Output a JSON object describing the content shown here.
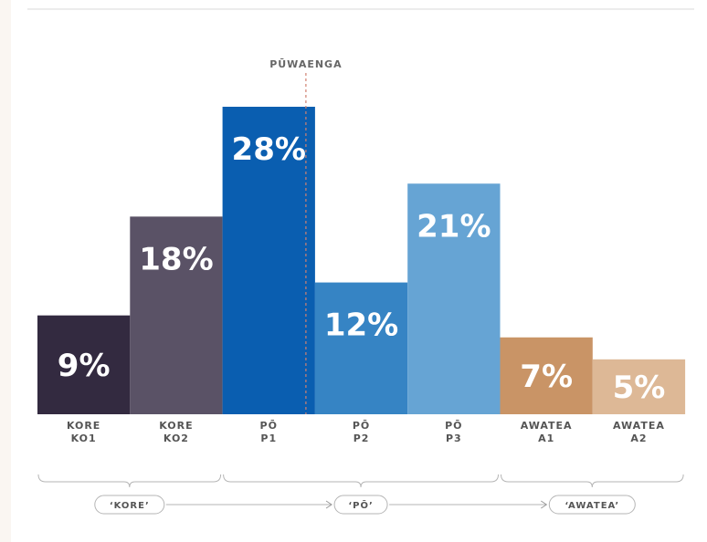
{
  "chart_data": {
    "type": "bar",
    "categories": [
      {
        "group": "KORE",
        "code": "KO1"
      },
      {
        "group": "KORE",
        "code": "KO2"
      },
      {
        "group": "PŌ",
        "code": "P1"
      },
      {
        "group": "PŌ",
        "code": "P2"
      },
      {
        "group": "PŌ",
        "code": "P3"
      },
      {
        "group": "AWATEA",
        "code": "A1"
      },
      {
        "group": "AWATEA",
        "code": "A2"
      }
    ],
    "values": [
      9,
      18,
      28,
      12,
      21,
      7,
      5
    ],
    "value_labels": [
      "9%",
      "18%",
      "28%",
      "12%",
      "21%",
      "7%",
      "5%"
    ],
    "colors": [
      "#332a40",
      "#5a5266",
      "#0a5eb0",
      "#3684c4",
      "#66a4d4",
      "#c99466",
      "#ddb896"
    ],
    "ylim": [
      0,
      30
    ],
    "grid": false,
    "legend": "none",
    "marker": {
      "label": "PŪWAENGA",
      "between": [
        2,
        3
      ],
      "color": "#d08070"
    },
    "phases": [
      {
        "label": "‘KORE’",
        "start": 0,
        "end": 1
      },
      {
        "label": "‘PŌ’",
        "start": 2,
        "end": 4
      },
      {
        "label": "‘AWATEA’",
        "start": 5,
        "end": 6
      }
    ]
  }
}
